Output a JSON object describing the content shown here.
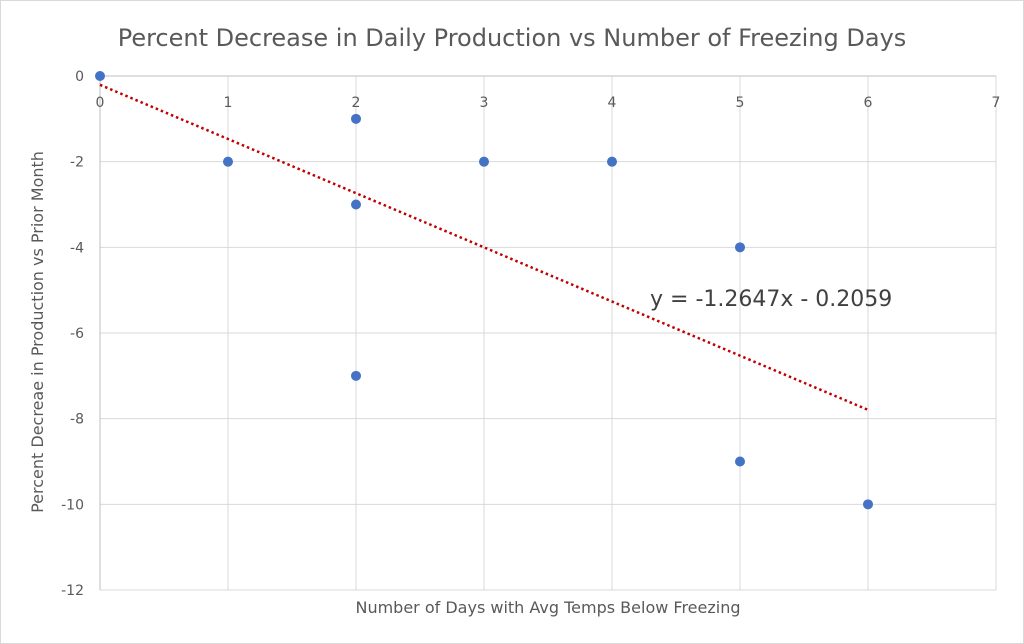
{
  "chart_data": {
    "type": "scatter",
    "title": "Percent Decrease in Daily Production vs Number of Freezing Days",
    "xlabel": "Number of Days with Avg Temps Below Freezing",
    "ylabel": "Percent Decreae in Production vs Prior Month",
    "xlim": [
      0,
      7
    ],
    "ylim": [
      -12,
      0
    ],
    "x_ticks": [
      "0",
      "1",
      "2",
      "3",
      "4",
      "5",
      "6",
      "7"
    ],
    "y_ticks": [
      "0",
      "-2",
      "-4",
      "-6",
      "-8",
      "-10",
      "-12"
    ],
    "grid": true,
    "legend": "none",
    "series": [
      {
        "x": [
          0,
          1,
          2,
          2,
          2,
          3,
          4,
          5,
          5,
          6
        ],
        "y": [
          0,
          -2,
          -1,
          -3,
          -7,
          -2,
          -2,
          -4,
          -9,
          -10
        ],
        "color": "#4472c4"
      }
    ],
    "trendline": {
      "type": "linear",
      "slope": -1.2647,
      "intercept": -0.2059,
      "x_range": [
        0,
        6
      ],
      "color": "#c00000",
      "style": "dotted",
      "label": "y = -1.2647x - 0.2059"
    }
  }
}
